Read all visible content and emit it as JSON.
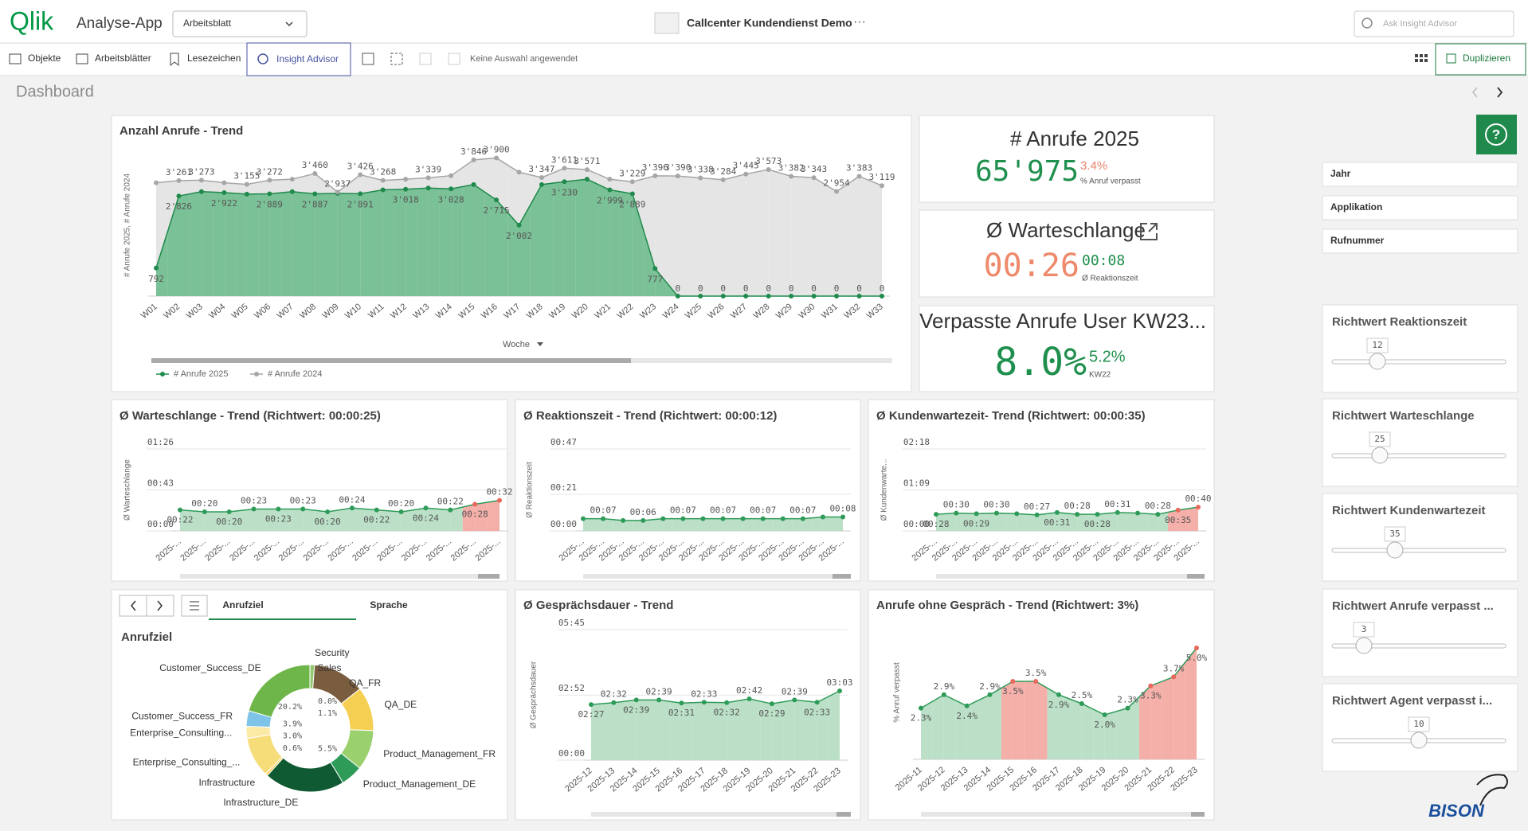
{
  "header": {
    "logo": "Qlik",
    "app": "Analyse-App",
    "sheet": "Arbeitsblatt",
    "title": "Callcenter Kundendienst Demo",
    "search": "Ask Insight Advisor"
  },
  "toolbar": {
    "objects": "Objekte",
    "sheets": "Arbeitsblätter",
    "bookmarks": "Lesezeichen",
    "insight": "Insight Advisor",
    "selection": "Keine Auswahl angewendet",
    "duplicate": "Duplizieren"
  },
  "sheet_title": "Dashboard",
  "kpis": [
    {
      "title": "# Anrufe 2025",
      "value": "65'975",
      "delta": "3.4%",
      "delta_label": "% Anruf verpasst"
    },
    {
      "title": "Ø Warteschlange",
      "value": "00:26",
      "delta": "00:08",
      "delta_label": "Ø Reaktionszeit"
    },
    {
      "title": "Verpasste Anrufe User KW23...",
      "value": "8.0%",
      "delta": "5.2%",
      "delta_label": "KW22"
    }
  ],
  "filters": [
    "Jahr",
    "Applikation",
    "Rufnummer"
  ],
  "sliders": [
    {
      "label": "Richtwert Reaktionszeit",
      "value": 12
    },
    {
      "label": "Richtwert Warteschlange",
      "value": 25
    },
    {
      "label": "Richtwert Kundenwartezeit",
      "value": 35
    },
    {
      "label": "Richtwert Anrufe verpasst ...",
      "value": 3
    },
    {
      "label": "Richtwert Agent verpasst i...",
      "value": 10
    }
  ],
  "tabs": [
    "Anrufziel",
    "Sprache"
  ],
  "brand": "BISON",
  "chart_data": [
    {
      "type": "area",
      "title": "Anzahl Anrufe - Trend",
      "y_label": "# Anrufe 2025, # Anrufe 2024",
      "x_label": "Woche",
      "categories": [
        "W01",
        "W02",
        "W03",
        "W04",
        "W05",
        "W06",
        "W07",
        "W08",
        "W09",
        "W10",
        "W11",
        "W12",
        "W13",
        "W14",
        "W15",
        "W16",
        "W17",
        "W18",
        "W19",
        "W20",
        "W21",
        "W22",
        "W23",
        "W24",
        "W25",
        "W26",
        "W27",
        "W28",
        "W29",
        "W30",
        "W31",
        "W32",
        "W33"
      ],
      "ylim": [
        0,
        4000
      ],
      "label_position": "series",
      "series": [
        {
          "name": "# Anrufe 2025",
          "color": "#1f8a4c",
          "area_color": "#6fbd8e",
          "values": [
            792,
            2826,
            2950,
            2922,
            2880,
            2889,
            2950,
            2887,
            2900,
            2891,
            3000,
            3018,
            3050,
            3028,
            3150,
            2715,
            2002,
            3150,
            3230,
            3300,
            2999,
            2889,
            777,
            0,
            0,
            0,
            0,
            0,
            0,
            0,
            0,
            0,
            0
          ],
          "value_labels": [
            "792",
            "2'826",
            null,
            "2'922",
            null,
            "2'889",
            null,
            "2'887",
            null,
            "2'891",
            null,
            "3'018",
            null,
            "3'028",
            null,
            "2'715",
            "2'002",
            null,
            "3'230",
            null,
            "2'999",
            "2'889",
            "777",
            "0",
            "0",
            "0",
            "0",
            "0",
            "0",
            "0",
            "0",
            "0",
            "0"
          ]
        },
        {
          "name": "# Anrufe 2024",
          "color": "#a6a6a6",
          "area_color": "#e2e2e2",
          "values": [
            3200,
            3261,
            3273,
            3200,
            3155,
            3272,
            3300,
            3460,
            2937,
            3426,
            3268,
            3300,
            3339,
            3400,
            3846,
            3900,
            3500,
            3347,
            3611,
            3571,
            3300,
            3229,
            3396,
            3390,
            3338,
            3284,
            3445,
            3573,
            3382,
            3343,
            2954,
            3383,
            3119
          ],
          "value_labels": [
            null,
            "3'261",
            "3'273",
            null,
            "3'155",
            "3'272",
            null,
            "3'460",
            "2'937",
            "3'426",
            "3'268",
            null,
            "3'339",
            null,
            "3'846",
            "3'900",
            null,
            "3'347",
            "3'611",
            "3'571",
            null,
            "3'229",
            "3'396",
            "3'390",
            "3'338",
            "3'284",
            "3'445",
            "3'573",
            "3'382",
            "3'343",
            "2'954",
            "3'383",
            "3'119"
          ]
        }
      ]
    },
    {
      "type": "area",
      "title": "Ø Warteschlange - Trend (Richtwert: 00:00:25)",
      "y_label": "Ø Warteschlange",
      "categories": [
        "2025-...",
        "2025-...",
        "2025-...",
        "2025-...",
        "2025-...",
        "2025-...",
        "2025-...",
        "2025-...",
        "2025-...",
        "2025-...",
        "2025-...",
        "2025-...",
        "2025-...",
        "2025-..."
      ],
      "values": [
        22,
        20,
        20,
        23,
        23,
        23,
        20,
        24,
        22,
        20,
        24,
        22,
        28,
        32
      ],
      "value_labels": [
        "00:22",
        "00:20",
        "00:20",
        "00:23",
        "00:23",
        "00:23",
        "00:20",
        "00:24",
        "00:22",
        "00:20",
        "00:24",
        "00:22",
        "00:28",
        "00:32"
      ],
      "color": "#2e9b59",
      "area_color": "#b4ddc1",
      "threshold": 25,
      "threshold_color": "#e9685c",
      "threshold_area_color": "#f4a6a0",
      "label_position": "alternate",
      "ylim": [
        0,
        86
      ],
      "yticks": [
        {
          "value": 0,
          "label": "00:00"
        },
        {
          "value": 43,
          "label": "00:43"
        },
        {
          "value": 86,
          "label": "01:26"
        }
      ]
    },
    {
      "type": "area",
      "title": "Ø Reaktionszeit - Trend (Richtwert: 00:00:12)",
      "y_label": "Ø Reaktionszeit",
      "categories": [
        "2025-...",
        "2025-...",
        "2025-...",
        "2025-...",
        "2025-...",
        "2025-...",
        "2025-...",
        "2025-...",
        "2025-...",
        "2025-...",
        "2025-...",
        "2025-...",
        "2025-...",
        "2025-..."
      ],
      "values": [
        7,
        7,
        6,
        6,
        7,
        7,
        7,
        7,
        7,
        7,
        7,
        7,
        8,
        8
      ],
      "value_labels": [
        null,
        "00:07",
        null,
        "00:06",
        null,
        "00:07",
        null,
        "00:07",
        null,
        "00:07",
        null,
        "00:07",
        null,
        "00:08"
      ],
      "color": "#2e9b59",
      "area_color": "#b4ddc1",
      "threshold": 12,
      "threshold_color": "#e9685c",
      "threshold_area_color": "#f4a6a0",
      "label_position": "above",
      "ylim": [
        0,
        47
      ],
      "yticks": [
        {
          "value": 0,
          "label": "00:00"
        },
        {
          "value": 21,
          "label": "00:21"
        },
        {
          "value": 47,
          "label": "00:47"
        }
      ]
    },
    {
      "type": "area",
      "title": "Ø Kundenwartezeit- Trend (Richtwert: 00:00:35)",
      "y_label": "Ø Kundenwarte...",
      "categories": [
        "2025-...",
        "2025-...",
        "2025-...",
        "2025-...",
        "2025-...",
        "2025-...",
        "2025-...",
        "2025-...",
        "2025-...",
        "2025-...",
        "2025-...",
        "2025-...",
        "2025-...",
        "2025-..."
      ],
      "values": [
        28,
        30,
        29,
        30,
        29,
        27,
        31,
        28,
        28,
        31,
        30,
        28,
        35,
        40
      ],
      "value_labels": [
        "00:28",
        "00:30",
        "00:29",
        "00:30",
        null,
        "00:27",
        "00:31",
        "00:28",
        "00:28",
        "00:31",
        null,
        "00:28",
        "00:35",
        "00:40"
      ],
      "color": "#2e9b59",
      "area_color": "#b4ddc1",
      "threshold": 35,
      "threshold_color": "#e9685c",
      "threshold_area_color": "#f4a6a0",
      "label_position": "alternate",
      "ylim": [
        0,
        138
      ],
      "yticks": [
        {
          "value": 0,
          "label": "00:00"
        },
        {
          "value": 69,
          "label": "01:09"
        },
        {
          "value": 138,
          "label": "02:18"
        }
      ]
    },
    {
      "type": "pie",
      "title": "Anrufziel",
      "categories": [
        "Security",
        "Sales",
        "QA_FR",
        "QA_DE",
        "Product_Management_FR",
        "Product_Management_DE",
        "Infrastructure_DE",
        "Infrastructure",
        "Enterprise_Consulting_...",
        "Enterprise_Consulting...",
        "Customer_Success_FR",
        "Customer_Success_DE"
      ],
      "values": [
        0.04,
        1.1,
        13,
        11,
        10,
        5.5,
        20,
        0.6,
        10,
        3.0,
        3.9,
        20.2
      ],
      "value_labels": [
        "0.0%",
        "1.1%",
        null,
        null,
        null,
        "5.5%",
        null,
        "0.6%",
        null,
        "3.0%",
        "3.9%",
        "20.2%"
      ],
      "colors": [
        "#8c8c8c",
        "#8fc86d",
        "#7a5c3e",
        "#f5cf52",
        "#9bd06f",
        "#2e9b59",
        "#0f5a32",
        "#f5cf52",
        "#f7dc7a",
        "#fbe9a6",
        "#7ec4e8",
        "#6fb64a"
      ]
    },
    {
      "type": "area",
      "title": "Ø Gesprächsdauer - Trend",
      "y_label": "Ø Gesprächsdauer",
      "categories": [
        "2025-12",
        "2025-13",
        "2025-14",
        "2025-15",
        "2025-16",
        "2025-17",
        "2025-18",
        "2025-19",
        "2025-20",
        "2025-21",
        "2025-22",
        "2025-23"
      ],
      "values": [
        147,
        152,
        159,
        159,
        151,
        153,
        152,
        162,
        149,
        159,
        153,
        183
      ],
      "value_labels": [
        "02:27",
        "02:32",
        "02:39",
        "02:39",
        "02:31",
        "02:33",
        "02:32",
        "02:42",
        "02:29",
        "02:39",
        "02:33",
        "03:03"
      ],
      "color": "#2e9b59",
      "area_color": "#b4ddc1",
      "label_position": "alternate",
      "ylim": [
        0,
        345
      ],
      "yticks": [
        {
          "value": 0,
          "label": "00:00"
        },
        {
          "value": 172,
          "label": "02:52"
        },
        {
          "value": 345,
          "label": "05:45"
        }
      ]
    },
    {
      "type": "area",
      "title": "Anrufe ohne Gespräch - Trend (Richtwert: 3%)",
      "y_label": "% Anruf verpasst",
      "categories": [
        "2025-11",
        "2025-12",
        "2025-13",
        "2025-14",
        "2025-15",
        "2025-16",
        "2025-17",
        "2025-18",
        "2025-19",
        "2025-20",
        "2025-21",
        "2025-22",
        "2025-23"
      ],
      "values": [
        2.3,
        2.9,
        2.4,
        2.9,
        3.5,
        3.5,
        2.9,
        2.5,
        2.0,
        2.3,
        3.3,
        3.7,
        5.0
      ],
      "value_labels": [
        "2.3%",
        "2.9%",
        "2.4%",
        "2.9%",
        "3.5%",
        "3.5%",
        "2.9%",
        "2.5%",
        "2.0%",
        "2.3%",
        "3.3%",
        "3.7%",
        "5.0%"
      ],
      "color": "#2e9b59",
      "area_color": "#b4ddc1",
      "threshold": 3,
      "threshold_color": "#e9685c",
      "threshold_area_color": "#f4a6a0",
      "label_position": "alternate",
      "ylim": [
        0,
        6
      ]
    }
  ]
}
